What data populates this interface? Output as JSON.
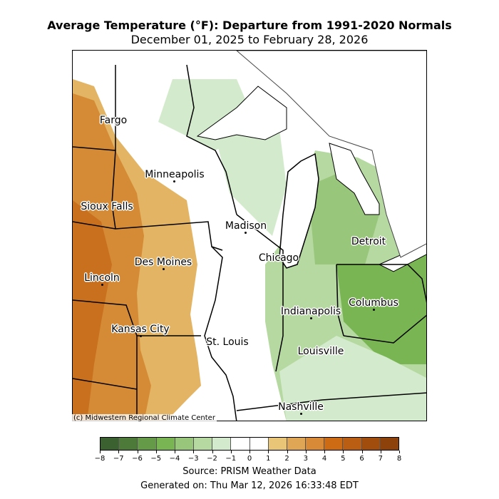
{
  "title": "Average Temperature (°F): Departure from 1991-2020 Normals",
  "subtitle": "December 01, 2025 to February 28, 2026",
  "credit": "(c) Midwestern Regional Climate Center",
  "cities": [
    {
      "name": "Fargo"
    },
    {
      "name": "Minneapolis"
    },
    {
      "name": "Sioux Falls"
    },
    {
      "name": "Madison"
    },
    {
      "name": "Des Moines"
    },
    {
      "name": "Lincoln"
    },
    {
      "name": "Chicago"
    },
    {
      "name": "Detroit"
    },
    {
      "name": "Columbus"
    },
    {
      "name": "Indianapolis"
    },
    {
      "name": "Kansas City"
    },
    {
      "name": "St. Louis"
    },
    {
      "name": "Louisville"
    },
    {
      "name": "Nashville"
    }
  ],
  "colorbar": {
    "colors": [
      "#3b6131",
      "#4d7a39",
      "#659a48",
      "#7ab553",
      "#98c67b",
      "#b6d9a2",
      "#d3ebcc",
      "#ffffff",
      "#ffffff",
      "#e9c677",
      "#dfa655",
      "#d88a36",
      "#cc6b14",
      "#b95e12",
      "#a14d0e",
      "#8c420a"
    ],
    "ticks": [
      "−8",
      "−7",
      "−6",
      "−5",
      "−4",
      "−3",
      "−2",
      "−1",
      "0",
      "1",
      "2",
      "3",
      "4",
      "5",
      "6",
      "7",
      "8"
    ]
  },
  "source": "Source: PRISM Weather Data",
  "generated": "Generated on: Thu Mar 12, 2026 16:33:48 EDT"
}
